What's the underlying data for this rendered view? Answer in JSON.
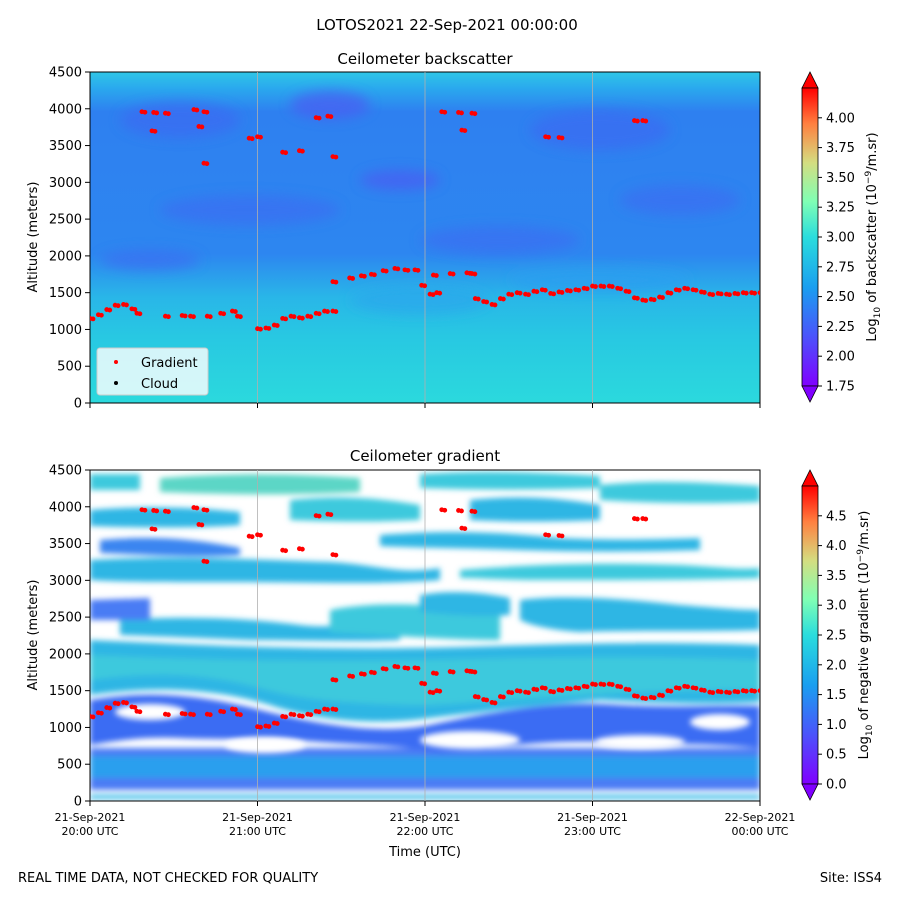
{
  "suptitle": "LOTOS2021 22-Sep-2021 00:00:00",
  "footer_left": "REAL TIME DATA, NOT CHECKED FOR QUALITY",
  "footer_right": "Site: ISS4",
  "colors": {
    "gradient_marker": "#ff0000",
    "cloud_marker": "#000000",
    "colormap": [
      "#8000ff",
      "#4a55fb",
      "#2adddd",
      "#80ffb4",
      "#d4dd80",
      "#ff8040",
      "#ff0000"
    ]
  },
  "chart_data": [
    {
      "type": "heatmap",
      "title": "Ceilometer backscatter",
      "xlabel": "",
      "ylabel": "Altitude (meters)",
      "ylim": [
        0,
        4500
      ],
      "y_ticks": [
        0,
        500,
        1000,
        1500,
        2000,
        2500,
        3000,
        3500,
        4000,
        4500
      ],
      "xlim_hours_utc": [
        20,
        24
      ],
      "x_tick_hours": [
        20,
        21,
        22,
        23,
        24
      ],
      "colorbar": {
        "label_main": "Log",
        "label_sub": "10",
        "label_mid": " of backscatter (10",
        "label_sup": "−9",
        "label_end": "/m.sr)",
        "range": [
          1.75,
          4.25
        ],
        "ticks": [
          "1.75",
          "2.00",
          "2.25",
          "2.50",
          "2.75",
          "3.00",
          "3.25",
          "3.50",
          "3.75",
          "4.00"
        ]
      },
      "legend": {
        "position": "lower-left",
        "entries": [
          {
            "label": "Gradient",
            "color": "#ff0000"
          },
          {
            "label": "Cloud",
            "color": "#000000"
          }
        ]
      }
    },
    {
      "type": "heatmap",
      "title": "Ceilometer gradient",
      "xlabel": "Time (UTC)",
      "ylabel": "Altitude (meters)",
      "ylim": [
        0,
        4500
      ],
      "y_ticks": [
        0,
        500,
        1000,
        1500,
        2000,
        2500,
        3000,
        3500,
        4000,
        4500
      ],
      "xlim_hours_utc": [
        20,
        24
      ],
      "x_tick_hours": [
        20,
        21,
        22,
        23,
        24
      ],
      "x_tick_labels": [
        [
          "21-Sep-2021",
          "20:00 UTC"
        ],
        [
          "21-Sep-2021",
          "21:00 UTC"
        ],
        [
          "21-Sep-2021",
          "22:00 UTC"
        ],
        [
          "21-Sep-2021",
          "23:00 UTC"
        ],
        [
          "22-Sep-2021",
          "00:00 UTC"
        ]
      ],
      "colorbar": {
        "label_main": "Log",
        "label_sub": "10",
        "label_mid": " of negative gradient (10",
        "label_sup": "−9",
        "label_end": "/m.sr)",
        "range": [
          0.0,
          5.0
        ],
        "ticks": [
          "0.0",
          "0.5",
          "1.0",
          "1.5",
          "2.0",
          "2.5",
          "3.0",
          "3.5",
          "4.0",
          "4.5"
        ]
      }
    }
  ],
  "gradient_points": [
    [
      20.0,
      1150
    ],
    [
      20.05,
      1200
    ],
    [
      20.1,
      1270
    ],
    [
      20.15,
      1330
    ],
    [
      20.2,
      1340
    ],
    [
      20.25,
      1280
    ],
    [
      20.28,
      1220
    ],
    [
      20.45,
      1180
    ],
    [
      20.55,
      1190
    ],
    [
      20.6,
      1180
    ],
    [
      20.7,
      1180
    ],
    [
      20.78,
      1220
    ],
    [
      20.85,
      1250
    ],
    [
      20.88,
      1180
    ],
    [
      21.0,
      1010
    ],
    [
      21.05,
      1020
    ],
    [
      21.1,
      1060
    ],
    [
      21.15,
      1150
    ],
    [
      21.2,
      1180
    ],
    [
      21.25,
      1160
    ],
    [
      21.3,
      1180
    ],
    [
      21.35,
      1220
    ],
    [
      21.4,
      1250
    ],
    [
      21.45,
      1250
    ],
    [
      21.45,
      1650
    ],
    [
      21.55,
      1700
    ],
    [
      21.62,
      1730
    ],
    [
      21.68,
      1750
    ],
    [
      21.75,
      1800
    ],
    [
      21.82,
      1830
    ],
    [
      21.88,
      1810
    ],
    [
      21.94,
      1810
    ],
    [
      21.98,
      1600
    ],
    [
      22.03,
      1480
    ],
    [
      22.07,
      1500
    ],
    [
      22.05,
      1740
    ],
    [
      22.15,
      1760
    ],
    [
      22.25,
      1770
    ],
    [
      22.28,
      1760
    ],
    [
      22.3,
      1420
    ],
    [
      22.35,
      1380
    ],
    [
      22.4,
      1340
    ],
    [
      22.45,
      1420
    ],
    [
      22.5,
      1480
    ],
    [
      22.55,
      1500
    ],
    [
      22.6,
      1480
    ],
    [
      22.65,
      1520
    ],
    [
      22.7,
      1540
    ],
    [
      22.75,
      1490
    ],
    [
      22.8,
      1510
    ],
    [
      22.85,
      1530
    ],
    [
      22.9,
      1540
    ],
    [
      22.95,
      1560
    ],
    [
      23.0,
      1590
    ],
    [
      23.05,
      1590
    ],
    [
      23.1,
      1590
    ],
    [
      23.15,
      1560
    ],
    [
      23.2,
      1520
    ],
    [
      23.25,
      1430
    ],
    [
      23.3,
      1400
    ],
    [
      23.35,
      1410
    ],
    [
      23.4,
      1440
    ],
    [
      23.45,
      1500
    ],
    [
      23.5,
      1540
    ],
    [
      23.55,
      1560
    ],
    [
      23.6,
      1540
    ],
    [
      23.65,
      1510
    ],
    [
      23.7,
      1480
    ],
    [
      23.75,
      1490
    ],
    [
      23.8,
      1480
    ],
    [
      23.85,
      1490
    ],
    [
      23.9,
      1500
    ],
    [
      23.95,
      1500
    ],
    [
      24.0,
      1500
    ],
    [
      20.31,
      3960
    ],
    [
      20.38,
      3950
    ],
    [
      20.45,
      3940
    ],
    [
      20.37,
      3700
    ],
    [
      20.62,
      3990
    ],
    [
      20.68,
      3960
    ],
    [
      20.65,
      3760
    ],
    [
      20.68,
      3260
    ],
    [
      20.95,
      3600
    ],
    [
      21.0,
      3620
    ],
    [
      21.15,
      3410
    ],
    [
      21.25,
      3430
    ],
    [
      21.35,
      3880
    ],
    [
      21.42,
      3900
    ],
    [
      21.45,
      3350
    ],
    [
      22.1,
      3960
    ],
    [
      22.2,
      3950
    ],
    [
      22.28,
      3940
    ],
    [
      22.22,
      3710
    ],
    [
      22.72,
      3620
    ],
    [
      22.8,
      3610
    ],
    [
      23.25,
      3840
    ],
    [
      23.3,
      3840
    ]
  ]
}
